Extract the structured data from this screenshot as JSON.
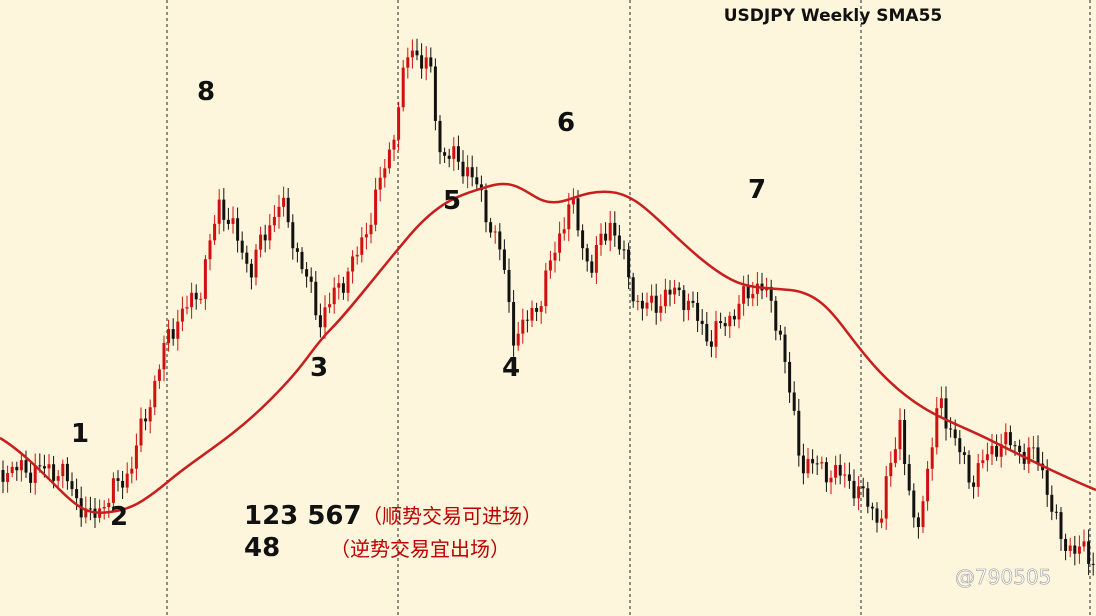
{
  "chart_data": {
    "type": "candlestick",
    "title": "USDJPY Weekly SMA55",
    "annotations": [
      "1",
      "2",
      "3",
      "4",
      "5",
      "6",
      "7",
      "8"
    ],
    "legend": [
      {
        "code": "123 567",
        "note": "（顺势交易可进场）"
      },
      {
        "code": "48",
        "note": "（逆势交易宜出场）"
      }
    ],
    "watermark": "@790505"
  }
}
